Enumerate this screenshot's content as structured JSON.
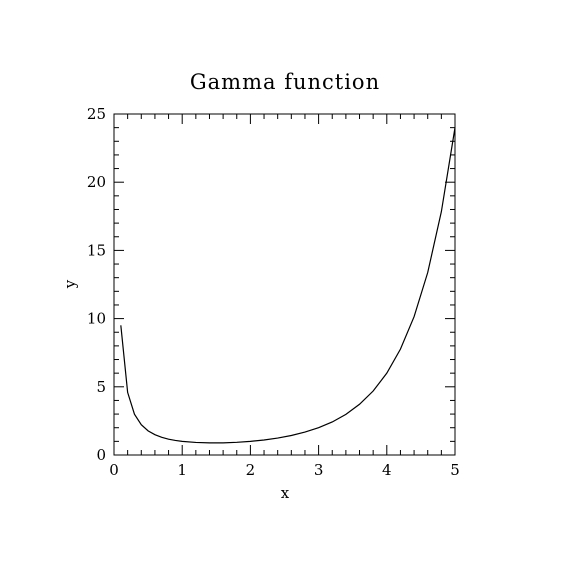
{
  "chart_data": {
    "type": "line",
    "title": "Gamma function",
    "xlabel": "x",
    "ylabel": "y",
    "xlim": [
      0,
      5
    ],
    "ylim": [
      0,
      25
    ],
    "xticks": [
      0,
      1,
      2,
      3,
      4,
      5
    ],
    "yticks": [
      0,
      5,
      10,
      15,
      20,
      25
    ],
    "x_tick_labels": [
      "0",
      "1",
      "2",
      "3",
      "4",
      "5"
    ],
    "y_tick_labels": [
      "0",
      "5",
      "10",
      "15",
      "20",
      "25"
    ],
    "grid": false,
    "line_color": "#000000",
    "series": [
      {
        "x": [
          0.1,
          0.2,
          0.3,
          0.4,
          0.5,
          0.6,
          0.7,
          0.8,
          0.9,
          1.0,
          1.2,
          1.4,
          1.6,
          1.8,
          2.0,
          2.2,
          2.4,
          2.6,
          2.8,
          3.0,
          3.2,
          3.4,
          3.6,
          3.8,
          4.0,
          4.2,
          4.4,
          4.6,
          4.8,
          5.0
        ],
        "y": [
          9.51,
          4.59,
          2.99,
          2.22,
          1.77,
          1.49,
          1.3,
          1.16,
          1.07,
          1.0,
          0.92,
          0.89,
          0.89,
          0.93,
          1.0,
          1.1,
          1.24,
          1.43,
          1.68,
          2.0,
          2.42,
          2.98,
          3.72,
          4.69,
          6.0,
          7.76,
          10.14,
          13.38,
          17.84,
          24.0
        ]
      }
    ]
  }
}
